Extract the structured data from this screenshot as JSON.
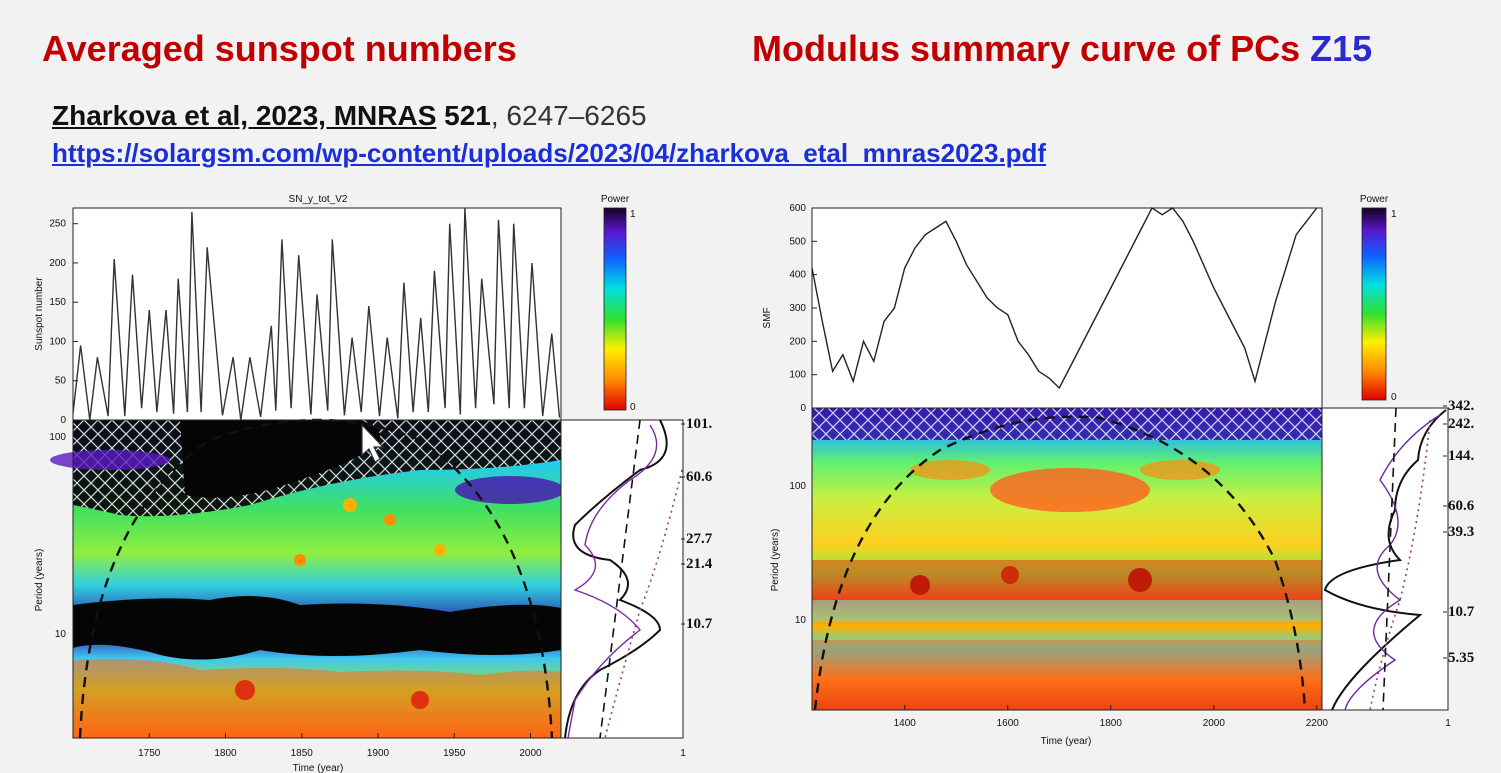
{
  "titles": {
    "left": "Averaged sunspot numbers",
    "right_main": "Modulus summary curve of PCs",
    "right_highlight": "Z15"
  },
  "citation": {
    "authors": "Zharkova et al, 2023, MNRAS",
    "volume": "521",
    "pages": ", 6247–6265",
    "url": "https://solargsm.com/wp-content/uploads/2023/04/zharkova_etal_mnras2023.pdf"
  },
  "chart_data": [
    {
      "type": "line",
      "title": "SN_y_tot_V2",
      "ylabel": "Sunspot number",
      "xlabel": "Time (year)",
      "ylim": [
        0,
        270
      ],
      "yticks": [
        "0",
        "50",
        "100",
        "150",
        "200",
        "250"
      ],
      "xticks": [
        "1750",
        "1800",
        "1850",
        "1900",
        "1950",
        "2000"
      ],
      "x": [
        1700,
        1705,
        1711,
        1716,
        1723,
        1727,
        1734,
        1739,
        1745,
        1750,
        1755,
        1761,
        1766,
        1769,
        1775,
        1778,
        1784,
        1788,
        1798,
        1805,
        1810,
        1816,
        1823,
        1830,
        1833,
        1837,
        1843,
        1848,
        1856,
        1860,
        1867,
        1870,
        1878,
        1883,
        1889,
        1894,
        1901,
        1906,
        1913,
        1917,
        1923,
        1928,
        1933,
        1937,
        1944,
        1947,
        1954,
        1957,
        1964,
        1968,
        1976,
        1979,
        1986,
        1989,
        1996,
        2001,
        2008,
        2014,
        2019
      ],
      "y": [
        8,
        95,
        0,
        80,
        5,
        205,
        5,
        185,
        15,
        140,
        10,
        140,
        8,
        180,
        10,
        265,
        10,
        220,
        6,
        80,
        0,
        80,
        4,
        120,
        12,
        230,
        15,
        210,
        7,
        160,
        12,
        230,
        6,
        105,
        10,
        145,
        5,
        105,
        2,
        175,
        10,
        130,
        10,
        190,
        15,
        250,
        7,
        270,
        15,
        180,
        20,
        255,
        15,
        250,
        15,
        200,
        5,
        110,
        3
      ],
      "power_colorbar": {
        "label": "Power",
        "max": "1",
        "min": "0"
      },
      "wavelet_ylabel": "Period (years)",
      "wavelet_yticks": [
        "100",
        "10"
      ],
      "global_spectrum_xticks": [
        "1"
      ],
      "period_labels": [
        "101.",
        "60.6",
        "27.7",
        "21.4",
        "10.7"
      ]
    },
    {
      "type": "line",
      "title": "",
      "ylabel": "SMF",
      "xlabel": "Time (year)",
      "ylim": [
        0,
        600
      ],
      "yticks": [
        "0",
        "100",
        "200",
        "300",
        "400",
        "500",
        "600"
      ],
      "xticks": [
        "1400",
        "1600",
        "1800",
        "2000",
        "2200"
      ],
      "x": [
        1220,
        1240,
        1260,
        1280,
        1300,
        1320,
        1340,
        1360,
        1380,
        1400,
        1420,
        1440,
        1460,
        1480,
        1500,
        1520,
        1540,
        1560,
        1580,
        1600,
        1620,
        1640,
        1660,
        1680,
        1700,
        1720,
        1740,
        1760,
        1780,
        1800,
        1820,
        1840,
        1860,
        1880,
        1900,
        1920,
        1940,
        1960,
        1980,
        2000,
        2020,
        2040,
        2060,
        2080,
        2100,
        2120,
        2140,
        2160,
        2180,
        2200
      ],
      "y": [
        420,
        260,
        110,
        160,
        80,
        200,
        140,
        260,
        300,
        420,
        480,
        520,
        540,
        560,
        500,
        430,
        380,
        330,
        300,
        280,
        200,
        160,
        110,
        90,
        60,
        120,
        180,
        240,
        300,
        360,
        420,
        480,
        540,
        600,
        580,
        620,
        560,
        500,
        430,
        360,
        300,
        240,
        180,
        80,
        200,
        320,
        420,
        520,
        560,
        600
      ],
      "power_colorbar": {
        "label": "Power",
        "max": "1",
        "min": "0"
      },
      "wavelet_ylabel": "Period (years)",
      "wavelet_yticks": [
        "100",
        "10"
      ],
      "global_spectrum_xticks": [
        "1"
      ],
      "period_labels": [
        "342.",
        "242.",
        "144.",
        "60.6",
        "39.3",
        "10.7",
        "5.35"
      ]
    }
  ]
}
